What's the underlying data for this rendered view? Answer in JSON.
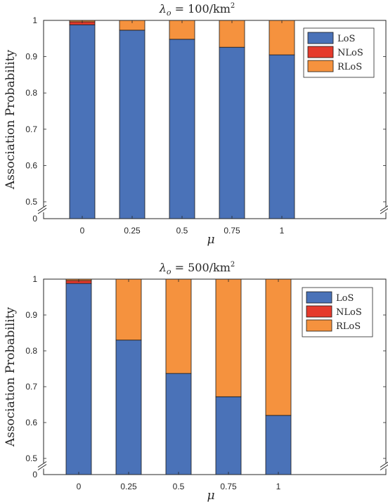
{
  "chart_data": [
    {
      "type": "bar",
      "stacked": true,
      "title_main": "λ",
      "title_sub": "o",
      "title_rest": " = 100/km",
      "title_sup": "2",
      "xlabel": "μ",
      "ylabel": "Association Probability",
      "categories": [
        "0",
        "0.25",
        "0.5",
        "0.75",
        "1"
      ],
      "yticks": [
        "0",
        "0.5",
        "0.6",
        "0.7",
        "0.8",
        "0.9",
        "1"
      ],
      "ylim": [
        0.5,
        1
      ],
      "axis_break": true,
      "legend_position": "top-right",
      "series": [
        {
          "name": "LoS",
          "color": "#4a72b8",
          "values": [
            0.988,
            0.973,
            0.948,
            0.926,
            0.905
          ]
        },
        {
          "name": "NLoS",
          "color": "#e53a2c",
          "values": [
            0.008,
            0.0,
            0.0,
            0.0,
            0.0
          ]
        },
        {
          "name": "RLoS",
          "color": "#f5923e",
          "values": [
            0.004,
            0.027,
            0.052,
            0.074,
            0.095
          ]
        }
      ]
    },
    {
      "type": "bar",
      "stacked": true,
      "title_main": "λ",
      "title_sub": "o",
      "title_rest": " = 500/km",
      "title_sup": "2",
      "xlabel": "μ",
      "ylabel": "Association Probability",
      "categories": [
        "0",
        "0.25",
        "0.5",
        "0.75",
        "1"
      ],
      "yticks": [
        "0",
        "0.5",
        "0.6",
        "0.7",
        "0.8",
        "0.9",
        "1"
      ],
      "ylim": [
        0.5,
        1
      ],
      "axis_break": true,
      "legend_position": "top-right",
      "series": [
        {
          "name": "LoS",
          "color": "#4a72b8",
          "values": [
            0.988,
            0.83,
            0.737,
            0.672,
            0.62
          ]
        },
        {
          "name": "NLoS",
          "color": "#e53a2c",
          "values": [
            0.008,
            0.0,
            0.0,
            0.0,
            0.0
          ]
        },
        {
          "name": "RLoS",
          "color": "#f5923e",
          "values": [
            0.004,
            0.17,
            0.263,
            0.328,
            0.38
          ]
        }
      ]
    }
  ]
}
